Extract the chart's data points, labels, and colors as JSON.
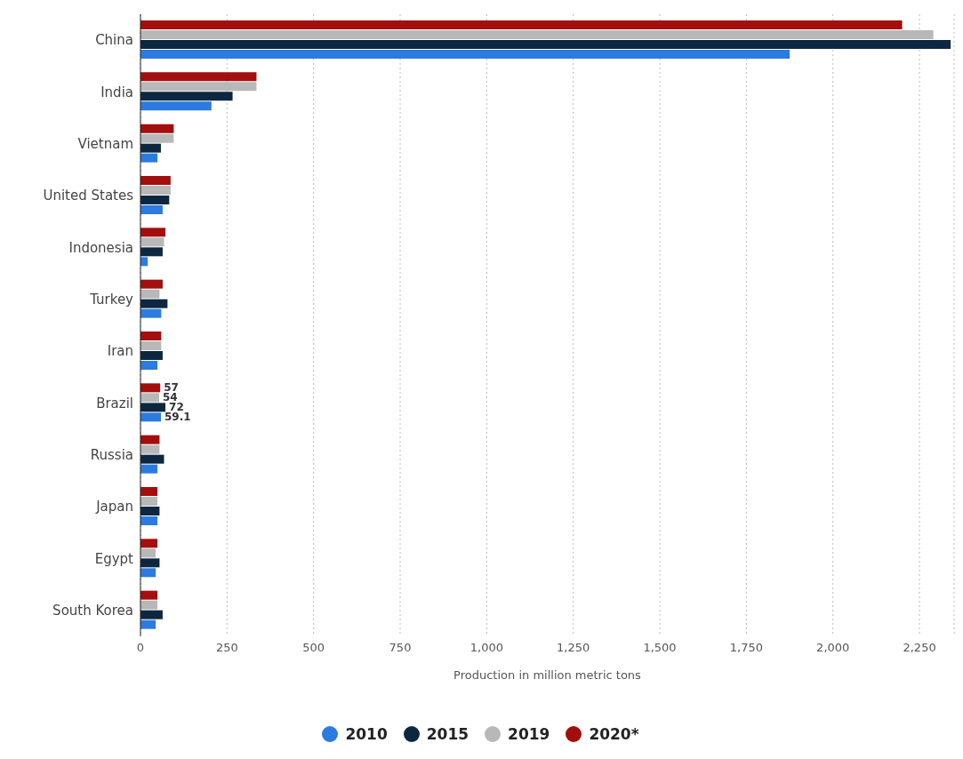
{
  "chart_data": {
    "type": "bar",
    "orientation": "horizontal",
    "xlabel": "Production in million metric tons",
    "categories": [
      "China",
      "India",
      "Vietnam",
      "United States",
      "Indonesia",
      "Turkey",
      "Iran",
      "Brazil",
      "Russia",
      "Japan",
      "Egypt",
      "South Korea"
    ],
    "series": [
      {
        "name": "2010",
        "color": "#2c7be0",
        "values": [
          1875,
          205,
          49,
          64,
          21,
          60,
          49,
          59.1,
          49,
          49,
          44,
          44
        ],
        "value_labels": [
          null,
          null,
          null,
          null,
          null,
          null,
          null,
          "59.1",
          null,
          null,
          null,
          null
        ]
      },
      {
        "name": "2015",
        "color": "#0e2740",
        "values": [
          2340,
          266,
          59,
          83,
          64,
          78,
          64,
          72,
          68,
          55,
          55,
          64
        ],
        "value_labels": [
          null,
          null,
          null,
          null,
          null,
          null,
          null,
          "72",
          null,
          null,
          null,
          null
        ]
      },
      {
        "name": "2019",
        "color": "#b8b8b8",
        "values": [
          2290,
          335,
          96,
          87,
          68,
          55,
          60,
          54,
          55,
          49,
          44,
          49
        ],
        "value_labels": [
          null,
          null,
          null,
          null,
          null,
          null,
          null,
          "54",
          null,
          null,
          null,
          null
        ]
      },
      {
        "name": "2020*",
        "color": "#a30e0e",
        "values": [
          2200,
          335,
          96,
          87,
          72,
          64,
          60,
          57,
          55,
          49,
          49,
          49
        ],
        "value_labels": [
          null,
          null,
          null,
          null,
          null,
          null,
          null,
          "57",
          null,
          null,
          null,
          null
        ]
      }
    ],
    "xlim": [
      0,
      2350
    ],
    "xticks": [
      0,
      250,
      500,
      750,
      {
        "value": 1000,
        "label": "1,000"
      },
      {
        "value": 1250,
        "label": "1,250"
      },
      {
        "value": 1500,
        "label": "1,500"
      },
      {
        "value": 1750,
        "label": "1,750"
      },
      {
        "value": 2000,
        "label": "2,000"
      },
      {
        "value": 2250,
        "label": "2,250"
      }
    ],
    "grid": "x",
    "legend": "bottom"
  }
}
